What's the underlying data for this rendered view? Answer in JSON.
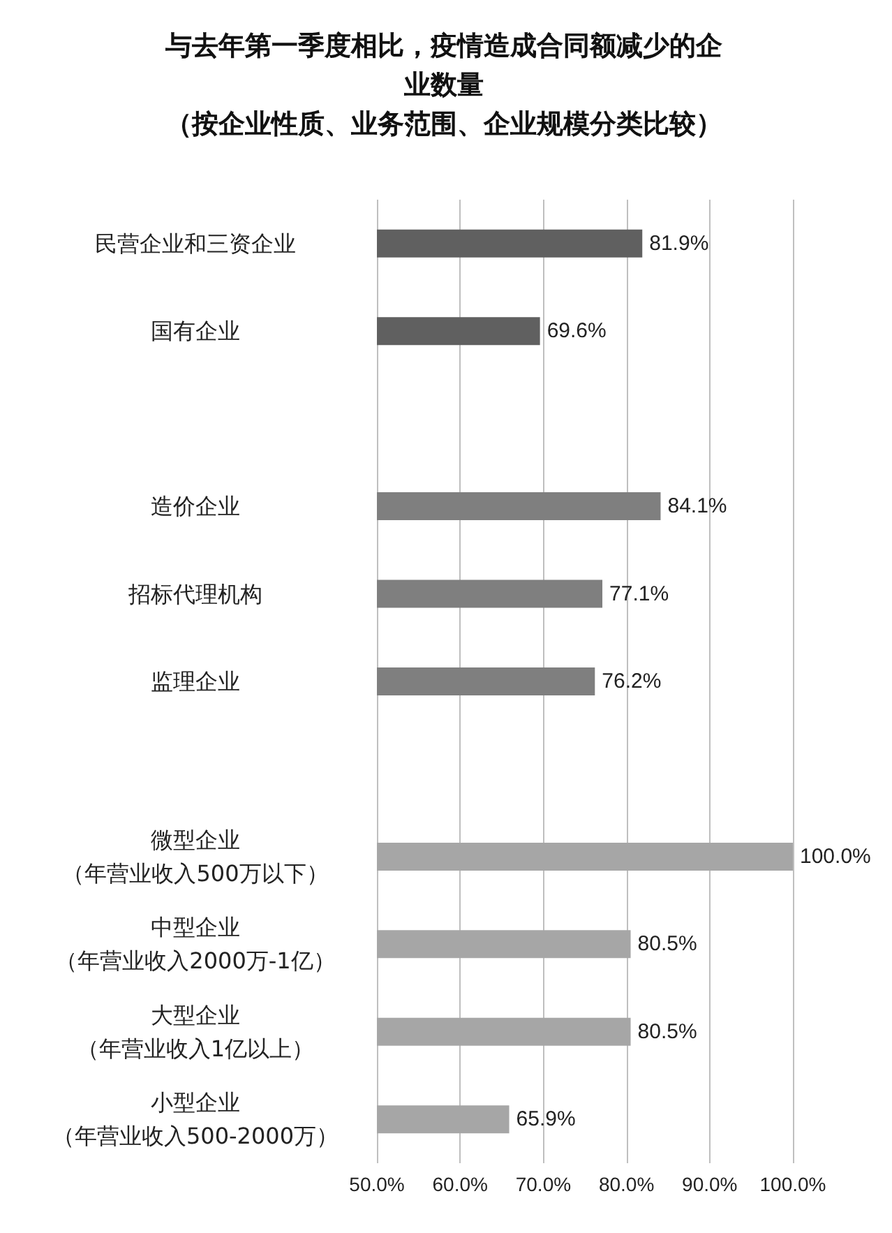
{
  "chart_data": {
    "type": "bar",
    "orientation": "horizontal",
    "title": "与去年第一季度相比，疫情造成合同额减少的企业数量（按企业性质、业务范围、企业规模分类比较）",
    "categories": [
      "民营企业和三资企业",
      "国有企业",
      null,
      "造价企业",
      "招标代理机构",
      "监理企业",
      null,
      "微型企业（年营业收入500万以下）",
      "中型企业（年营业收入2000万-1亿）",
      "大型企业（年营业收入1亿以上）",
      "小型企业（年营业收入500-2000万）"
    ],
    "values": [
      81.9,
      69.6,
      null,
      84.1,
      77.1,
      76.2,
      null,
      100.0,
      80.5,
      80.5,
      65.9
    ],
    "value_labels": [
      "81.9%",
      "69.6%",
      null,
      "84.1%",
      "77.1%",
      "76.2%",
      null,
      "100.0%",
      "80.5%",
      "80.5%",
      "65.9%"
    ],
    "colors": [
      "#606060",
      "#606060",
      null,
      "#7f7f7f",
      "#7f7f7f",
      "#7f7f7f",
      null,
      "#a6a6a6",
      "#a6a6a6",
      "#a6a6a6",
      "#a6a6a6"
    ],
    "xlim": [
      50,
      100
    ],
    "xticks": [
      {
        "value": 50,
        "label": "50.0%"
      },
      {
        "value": 60,
        "label": "60.0%"
      },
      {
        "value": 70,
        "label": "70.0%"
      },
      {
        "value": 80,
        "label": "80.0%"
      },
      {
        "value": 90,
        "label": "90.0%"
      },
      {
        "value": 100,
        "label": "100.0%"
      }
    ],
    "grid": "x"
  }
}
